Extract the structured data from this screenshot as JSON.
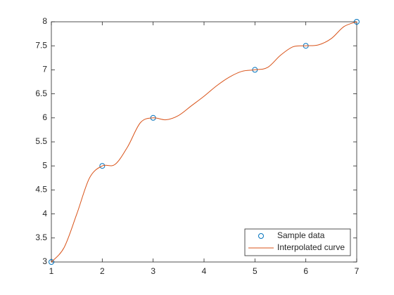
{
  "chart_data": {
    "type": "line",
    "xlim": [
      1,
      7
    ],
    "ylim": [
      3,
      8
    ],
    "xticks": [
      1,
      2,
      3,
      4,
      5,
      6,
      7
    ],
    "yticks": [
      3,
      3.5,
      4,
      4.5,
      5,
      5.5,
      6,
      6.5,
      7,
      7.5,
      8
    ],
    "grid": false,
    "legend": "southeast",
    "series": [
      {
        "name": "Sample data",
        "color": "#0072BD",
        "marker": "circle",
        "line": false,
        "x": [
          1,
          2,
          3,
          5,
          6,
          7
        ],
        "values": [
          3,
          5,
          6,
          7,
          7.5,
          8
        ]
      },
      {
        "name": "Interpolated curve",
        "color": "#D95319",
        "marker": "none",
        "line": true,
        "x": [
          1,
          1.25,
          1.5,
          1.75,
          2,
          2.25,
          2.5,
          2.75,
          3,
          3.25,
          3.5,
          3.75,
          4,
          4.25,
          4.5,
          4.75,
          5,
          5.25,
          5.5,
          5.75,
          6,
          6.25,
          6.5,
          6.75,
          7
        ],
        "values": [
          3,
          3.3,
          4.0,
          4.75,
          5,
          5.03,
          5.4,
          5.9,
          6,
          5.96,
          6.05,
          6.25,
          6.45,
          6.67,
          6.85,
          6.97,
          7,
          7.05,
          7.3,
          7.48,
          7.5,
          7.52,
          7.65,
          7.9,
          8
        ]
      }
    ]
  }
}
